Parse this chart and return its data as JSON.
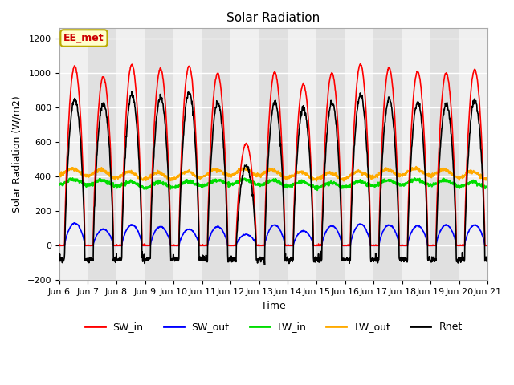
{
  "title": "Solar Radiation",
  "ylabel": "Solar Radiation (W/m2)",
  "xlabel": "Time",
  "ylim": [
    -200,
    1260
  ],
  "yticks": [
    -200,
    0,
    200,
    400,
    600,
    800,
    1000,
    1200
  ],
  "n_days": 15,
  "dt_hours": 0.25,
  "series_colors": {
    "SW_in": "#ff0000",
    "SW_out": "#0000ff",
    "LW_in": "#00dd00",
    "LW_out": "#ffaa00",
    "Rnet": "#000000"
  },
  "legend_labels": [
    "SW_in",
    "SW_out",
    "LW_in",
    "LW_out",
    "Rnet"
  ],
  "legend_colors": [
    "#ff0000",
    "#0000ff",
    "#00dd00",
    "#ffaa00",
    "#000000"
  ],
  "legend_linestyles": [
    "-",
    "-",
    "-",
    "-",
    "-"
  ],
  "annotation_text": "EE_met",
  "annotation_color": "#cc0000",
  "annotation_bg": "#ffffcc",
  "annotation_border": "#bbaa00",
  "band_color_light": "#f0f0f0",
  "band_color_dark": "#e0e0e0",
  "SW_peaks": [
    1040,
    980,
    1050,
    1025,
    1040,
    1000,
    590,
    1005,
    935,
    1000,
    1050,
    1030,
    1010,
    1000,
    1020
  ],
  "SW_out_peaks": [
    130,
    95,
    120,
    110,
    95,
    110,
    65,
    120,
    85,
    115,
    125,
    120,
    115,
    120,
    120
  ],
  "LW_in_base": 360,
  "LW_out_base": 415,
  "Rnet_night": -80,
  "sunrise": 4.5,
  "sunset": 21.5,
  "font_family": "DejaVu Sans",
  "font_size_title": 11,
  "font_size_axis": 9,
  "font_size_tick": 8,
  "font_size_legend": 9
}
